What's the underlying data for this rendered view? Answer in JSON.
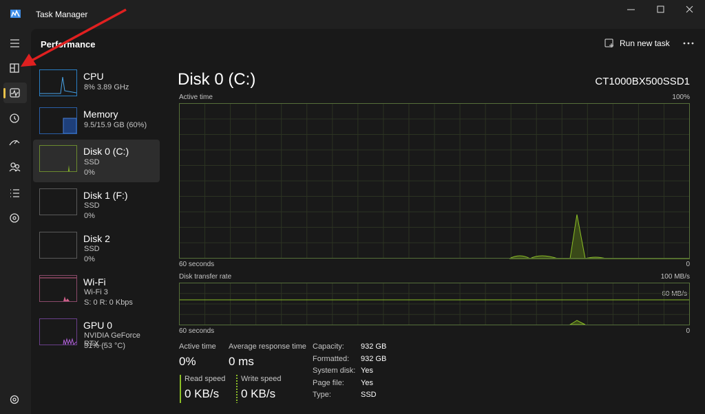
{
  "window": {
    "title": "Task Manager"
  },
  "header": {
    "title": "Performance",
    "run_new_task": "Run new task"
  },
  "devices": [
    {
      "name": "CPU",
      "line1": "8% 3.89 GHz"
    },
    {
      "name": "Memory",
      "line1": "9.5/15.9 GB (60%)"
    },
    {
      "name": "Disk 0 (C:)",
      "line1": "SSD",
      "line2": "0%"
    },
    {
      "name": "Disk 1 (F:)",
      "line1": "SSD",
      "line2": "0%"
    },
    {
      "name": "Disk 2",
      "line1": "SSD",
      "line2": "0%"
    },
    {
      "name": "Wi-Fi",
      "line1": "Wi-Fi 3",
      "line2": "S: 0 R: 0 Kbps"
    },
    {
      "name": "GPU 0",
      "line1": "NVIDIA GeForce RTX...",
      "line2": "31% (53 °C)"
    }
  ],
  "detail": {
    "title": "Disk 0 (C:)",
    "model": "CT1000BX500SSD1",
    "graph1": {
      "label": "Active time",
      "max": "100%",
      "time": "60 seconds",
      "min": "0"
    },
    "graph2": {
      "label": "Disk transfer rate",
      "max": "100 MB/s",
      "marker": "60 MB/s",
      "time": "60 seconds",
      "min": "0"
    },
    "stats": {
      "active_time_label": "Active time",
      "active_time": "0%",
      "response_label": "Average response time",
      "response": "0 ms",
      "read_label": "Read speed",
      "read": "0 KB/s",
      "write_label": "Write speed",
      "write": "0 KB/s"
    },
    "properties": [
      [
        "Capacity:",
        "932 GB"
      ],
      [
        "Formatted:",
        "932 GB"
      ],
      [
        "System disk:",
        "Yes"
      ],
      [
        "Page file:",
        "Yes"
      ],
      [
        "Type:",
        "SSD"
      ]
    ]
  }
}
